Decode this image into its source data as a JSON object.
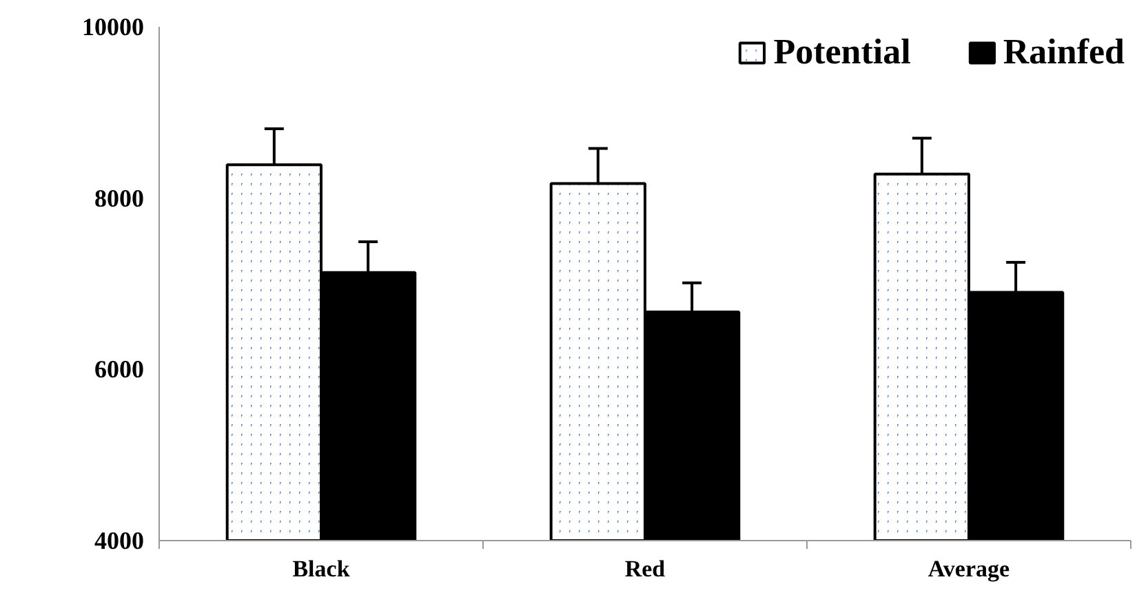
{
  "chart_data": {
    "type": "bar",
    "categories": [
      "Black",
      "Red",
      "Average"
    ],
    "series": [
      {
        "name": "Potential",
        "color": "#4f81bd",
        "values": [
          8390,
          8170,
          8280
        ],
        "errors": [
          420,
          410,
          420
        ]
      },
      {
        "name": "Rainfed",
        "color": "#000000",
        "values": [
          7130,
          6670,
          6900
        ],
        "errors": [
          360,
          340,
          350
        ]
      }
    ],
    "ylim": [
      4000,
      10000
    ],
    "yticks": [
      4000,
      6000,
      8000,
      10000
    ],
    "grid": false,
    "legend": "top right"
  }
}
